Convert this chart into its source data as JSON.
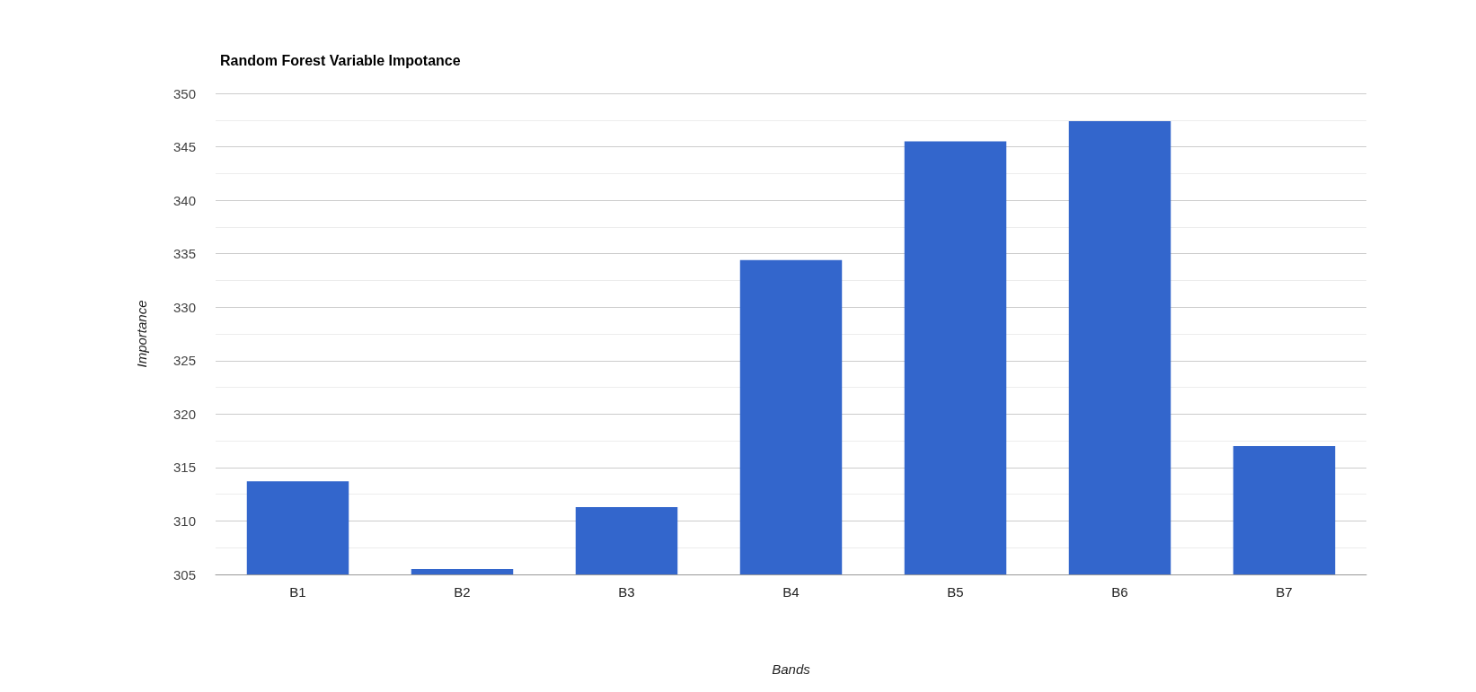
{
  "chart_data": {
    "type": "bar",
    "title": "Random Forest Variable Impotance",
    "xlabel": "Bands",
    "ylabel": "Importance",
    "categories": [
      "B1",
      "B2",
      "B3",
      "B4",
      "B5",
      "B6",
      "B7"
    ],
    "values": [
      313.7,
      305.5,
      311.3,
      334.4,
      345.5,
      347.4,
      317.0
    ],
    "color": "#3366cc",
    "ylim": [
      305,
      350
    ],
    "yticks": [
      305,
      310,
      315,
      320,
      325,
      330,
      335,
      340,
      345,
      350
    ],
    "grid": "y"
  }
}
